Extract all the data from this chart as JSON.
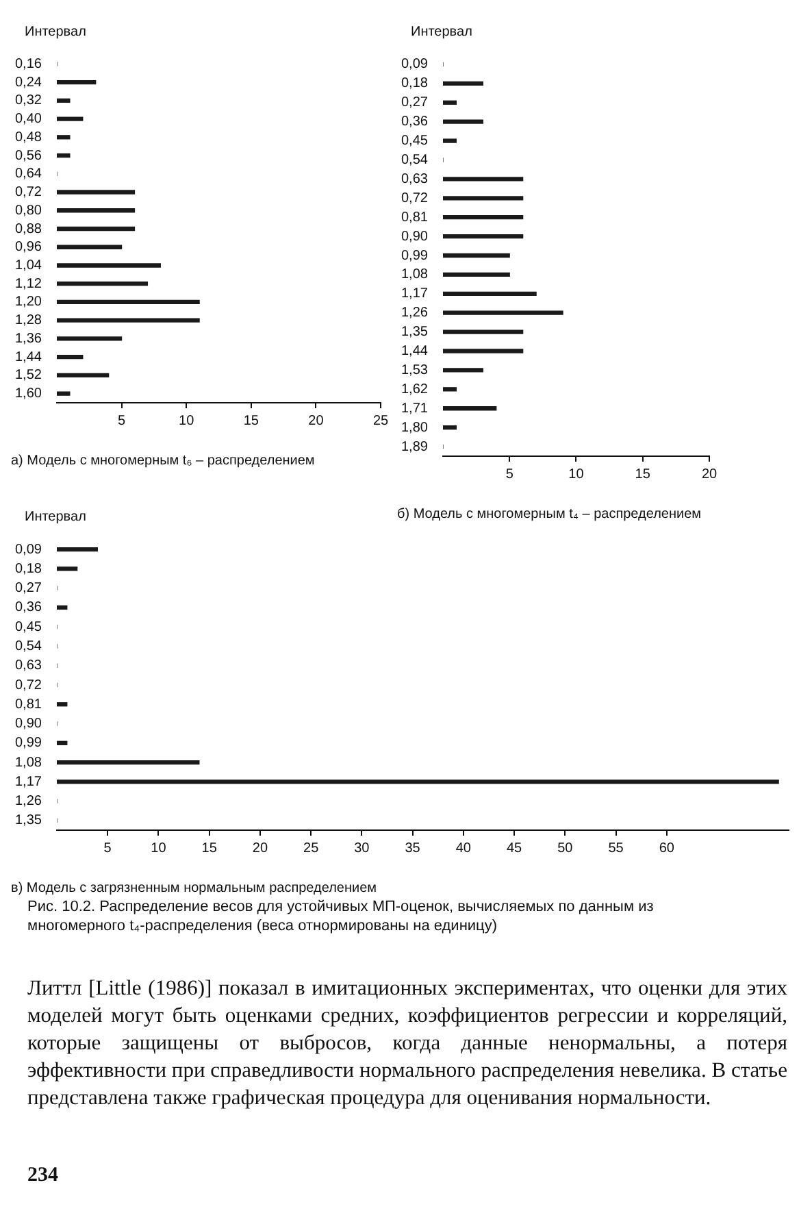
{
  "chart_data": [
    {
      "type": "bar",
      "orientation": "horizontal",
      "title": "а) Модель с многомерным t₆ – распределением",
      "ylabel": "Интервал",
      "categories": [
        "0,16",
        "0,24",
        "0,32",
        "0,40",
        "0,48",
        "0,56",
        "0,64",
        "0,72",
        "0,80",
        "0,88",
        "0,96",
        "1,04",
        "1,12",
        "1,20",
        "1,28",
        "1,36",
        "1,44",
        "1,52",
        "1,60"
      ],
      "values": [
        0,
        3,
        1,
        2,
        1,
        1,
        0,
        6,
        6,
        6,
        5,
        8,
        7,
        11,
        11,
        5,
        2,
        4,
        1
      ],
      "color": "#1a1a1a",
      "xlim": [
        0,
        25
      ],
      "xticks": [
        5,
        10,
        15,
        20,
        25
      ],
      "grid": false,
      "legend": false
    },
    {
      "type": "bar",
      "orientation": "horizontal",
      "title": "б) Модель с многомерным t₄ – распределением",
      "ylabel": "Интервал",
      "categories": [
        "0,09",
        "0,18",
        "0,27",
        "0,36",
        "0,45",
        "0,54",
        "0,63",
        "0,72",
        "0,81",
        "0,90",
        "0,99",
        "1,08",
        "1,17",
        "1,26",
        "1,35",
        "1,44",
        "1,53",
        "1,62",
        "1,71",
        "1,80",
        "1,89"
      ],
      "values": [
        0,
        3,
        1,
        3,
        1,
        0,
        6,
        6,
        6,
        6,
        5,
        5,
        7,
        9,
        6,
        6,
        3,
        1,
        4,
        1,
        0
      ],
      "color": "#1a1a1a",
      "xlim": [
        0,
        20
      ],
      "xticks": [
        5,
        10,
        15,
        20
      ],
      "grid": false,
      "legend": false
    },
    {
      "type": "bar",
      "orientation": "horizontal",
      "title": "в) Модель с загрязненным нормальным распределением",
      "ylabel": "Интервал",
      "categories": [
        "0,09",
        "0,18",
        "0,27",
        "0,36",
        "0,45",
        "0,54",
        "0,63",
        "0,72",
        "0,81",
        "0,90",
        "0,99",
        "1,08",
        "1,17",
        "1,26",
        "1,35"
      ],
      "values": [
        4,
        2,
        0,
        1,
        0,
        0,
        0,
        0,
        1,
        0,
        1,
        14,
        71,
        0,
        0
      ],
      "color": "#1a1a1a",
      "xlim": [
        0,
        72
      ],
      "xticks": [
        5,
        10,
        15,
        20,
        25,
        30,
        35,
        40,
        45,
        50,
        55,
        60
      ],
      "grid": false,
      "legend": false,
      "annotations": [
        "Рис. 10.2. Распределение весов для устойчивых МП-оценок, вычисляемых по данным из многомерного t₄-распределения (веса отнормированы на единицу)",
        "Литтл [Little (1986)] показал в имитационных экспериментах, что оценки для этих моделей могут быть оценками средних, коэффициентов регрессии и корреляций, которые защищены от выбросов, когда данные ненормальны, а потеря эффективности при справедливости нормального распределения невелика. В статье представлена также графическая процедура для оценивания нормальности.",
        "234"
      ]
    }
  ]
}
